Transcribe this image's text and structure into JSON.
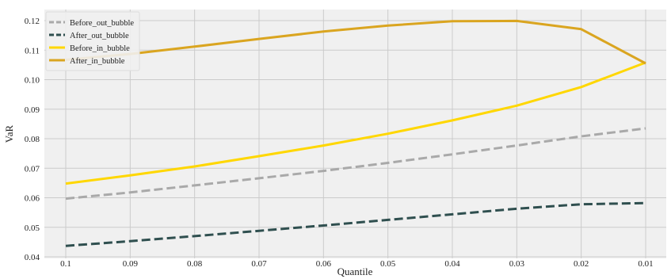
{
  "chart_data": {
    "type": "line",
    "title": "",
    "xlabel": "Quantile",
    "ylabel": "VaR",
    "x": [
      "0.1",
      "0.09",
      "0.08",
      "0.07",
      "0.06",
      "0.05",
      "0.04",
      "0.03",
      "0.02",
      "0.01"
    ],
    "ylim": [
      0.04,
      0.122
    ],
    "yticks": [
      "0.04",
      "0.05",
      "0.06",
      "0.07",
      "0.08",
      "0.09",
      "0.10",
      "0.11",
      "0.12"
    ],
    "grid": true,
    "legend_position": "top-left",
    "background": "#f0f0f0",
    "series": [
      {
        "name": "Before_out_bubble",
        "color": "#a9a9a9",
        "dashed": true,
        "values": [
          0.0597,
          0.0618,
          0.0642,
          0.0666,
          0.0691,
          0.0718,
          0.0747,
          0.0777,
          0.0808,
          0.0835
        ]
      },
      {
        "name": "After_out_bubble",
        "color": "#2f4f4f",
        "dashed": true,
        "values": [
          0.0437,
          0.0453,
          0.047,
          0.0488,
          0.0506,
          0.0525,
          0.0544,
          0.0563,
          0.0578,
          0.0582
        ]
      },
      {
        "name": "Before_in_bubble",
        "color": "#ffd700",
        "dashed": false,
        "values": [
          0.0648,
          0.0676,
          0.0706,
          0.0741,
          0.0777,
          0.0817,
          0.0862,
          0.0912,
          0.0975,
          0.1058
        ]
      },
      {
        "name": "After_in_bubble",
        "color": "#daa520",
        "dashed": false,
        "values": [
          0.1067,
          0.1087,
          0.1112,
          0.1138,
          0.1163,
          0.1183,
          0.1198,
          0.1199,
          0.1171,
          0.1055
        ]
      }
    ]
  }
}
